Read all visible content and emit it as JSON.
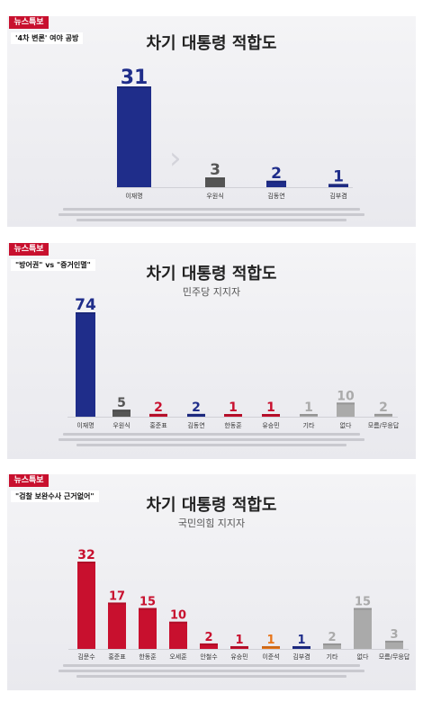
{
  "panels": [
    {
      "badge": "뉴스특보",
      "quote": "'4차 변론' 여야 공방",
      "title": "차기 대통령 적합도",
      "subtitle": ""
    },
    {
      "badge": "뉴스특보",
      "quote": "\"방어권\" vs \"증거인멸\"",
      "title": "차기 대통령 적합도",
      "subtitle": "민주당 지지자"
    },
    {
      "badge": "뉴스특보",
      "quote": "\"검찰 보완수사 근거없어\"",
      "title": "차기 대통령 적합도",
      "subtitle": "국민의힘 지지자"
    }
  ],
  "chart_data": [
    {
      "type": "bar",
      "title": "차기 대통령 적합도",
      "categories": [
        "이재명",
        "우원식",
        "김동연",
        "김부겸"
      ],
      "values": [
        31,
        3,
        2,
        1
      ],
      "colors": [
        "#1f2d8a",
        "#555555",
        "#1f2d8a",
        "#1f2d8a"
      ],
      "ylim": [
        0,
        35
      ],
      "grid": false,
      "legend": "none"
    },
    {
      "type": "bar",
      "title": "차기 대통령 적합도",
      "subtitle": "민주당 지지자",
      "categories": [
        "이재명",
        "우원식",
        "홍준표",
        "김동연",
        "한동훈",
        "유승민",
        "기타",
        "없다",
        "모름/무응답"
      ],
      "values": [
        74,
        5,
        2,
        2,
        1,
        1,
        1,
        10,
        2
      ],
      "colors": [
        "#1f2d8a",
        "#555555",
        "#c8102e",
        "#1f2d8a",
        "#c8102e",
        "#c8102e",
        "#aaaaaa",
        "#aaaaaa",
        "#aaaaaa"
      ],
      "ylim": [
        0,
        80
      ],
      "grid": false,
      "legend": "none"
    },
    {
      "type": "bar",
      "title": "차기 대통령 적합도",
      "subtitle": "국민의힘 지지자",
      "categories": [
        "김문수",
        "홍준표",
        "한동훈",
        "오세훈",
        "안철수",
        "유승민",
        "이준석",
        "김부겸",
        "기타",
        "없다",
        "모름/무응답"
      ],
      "values": [
        32,
        17,
        15,
        10,
        2,
        1,
        1,
        1,
        2,
        15,
        3
      ],
      "colors": [
        "#c8102e",
        "#c8102e",
        "#c8102e",
        "#c8102e",
        "#c8102e",
        "#c8102e",
        "#e8761b",
        "#1f2d8a",
        "#aaaaaa",
        "#aaaaaa",
        "#aaaaaa"
      ],
      "ylim": [
        0,
        35
      ],
      "grid": false,
      "legend": "none"
    }
  ]
}
